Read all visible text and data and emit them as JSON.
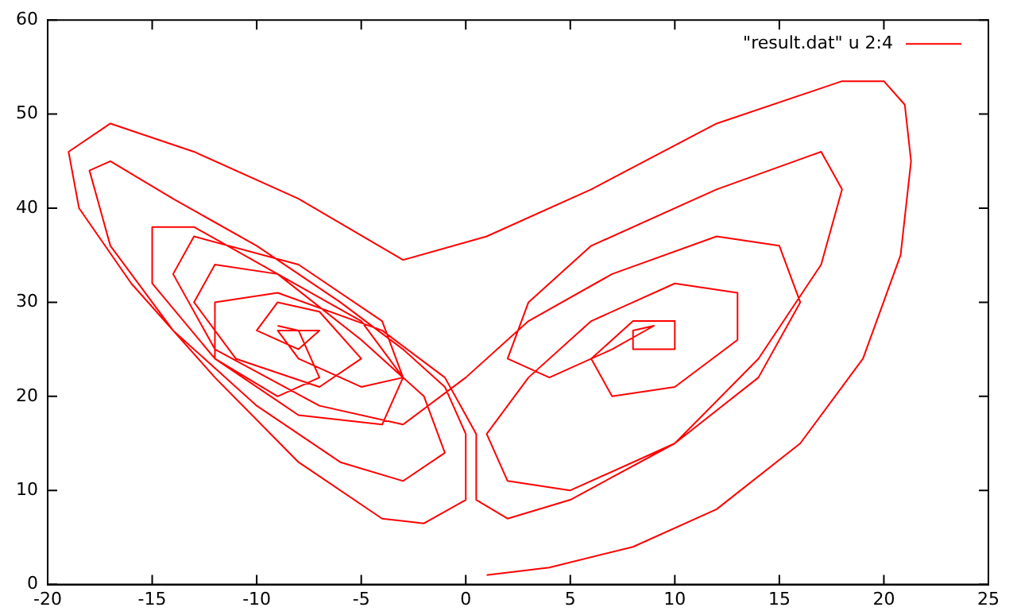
{
  "chart_data": {
    "type": "line",
    "x": [
      1,
      4,
      8,
      12,
      16,
      19,
      20.8,
      21.3,
      21,
      20,
      18,
      12,
      6,
      1,
      -3,
      -8,
      -13,
      -17,
      -19,
      -18.5,
      -16,
      -12,
      -8,
      -4,
      -2,
      0,
      0,
      -1,
      -3,
      -6,
      -10,
      -14,
      -17,
      -18,
      -17,
      -14,
      -10,
      -6,
      -3,
      -1,
      -2,
      -5,
      -9,
      -13,
      -15,
      -15,
      -12,
      -8,
      -4,
      -3,
      -5,
      -9,
      -12,
      -13,
      -11,
      -7,
      -5,
      -7,
      -9,
      -10,
      -8,
      -7,
      -9,
      -8,
      -5,
      -3,
      -4,
      -8,
      -13,
      -14,
      -12,
      -7,
      -3,
      0,
      3,
      7,
      12,
      15,
      16,
      14,
      10,
      5,
      2,
      1,
      3,
      6,
      10,
      13,
      13,
      10,
      7,
      6,
      8,
      10,
      10,
      8,
      8,
      9,
      7,
      4,
      2,
      3,
      6,
      12,
      17,
      18,
      17,
      14,
      10,
      5,
      2,
      0.5,
      0.5,
      -1,
      -4,
      -9,
      -12,
      -12,
      -9,
      -7,
      -8,
      -9
    ],
    "series": [
      {
        "name": "\"result.dat\" u 2:4",
        "color": "#ff0000",
        "values": [
          1,
          1.8,
          4,
          8,
          15,
          24,
          35,
          45,
          51,
          53.5,
          53.5,
          49,
          42,
          37,
          34.5,
          41,
          46,
          49,
          46,
          40,
          32,
          22,
          13,
          7,
          6.5,
          9,
          16,
          21,
          25,
          30,
          36,
          41,
          45,
          44,
          36,
          27,
          19,
          13,
          11,
          14,
          20,
          26,
          33,
          38,
          38,
          32,
          24,
          18,
          17,
          22,
          28,
          33,
          34,
          30,
          24,
          21,
          24,
          29,
          30,
          27,
          25,
          27,
          27,
          24,
          21,
          22,
          28,
          34,
          37,
          33,
          25,
          19,
          17,
          22,
          28,
          33,
          37,
          36,
          30,
          22,
          15,
          10,
          11,
          16,
          22,
          28,
          32,
          31,
          26,
          21,
          20,
          24,
          28,
          28,
          25,
          25,
          27,
          27.5,
          25,
          22,
          24,
          30,
          36,
          42,
          46,
          42,
          34,
          24,
          15,
          9,
          7,
          9,
          16,
          22,
          27,
          31,
          30,
          24,
          20,
          22,
          27,
          27.5
        ]
      }
    ],
    "xlim": [
      -20,
      25
    ],
    "ylim": [
      0,
      60
    ],
    "xticks": [
      -20,
      -15,
      -10,
      -5,
      0,
      5,
      10,
      15,
      20,
      25
    ],
    "yticks": [
      0,
      10,
      20,
      30,
      40,
      50,
      60
    ],
    "legend": "top right",
    "marker": "none",
    "line_style": "solid"
  }
}
